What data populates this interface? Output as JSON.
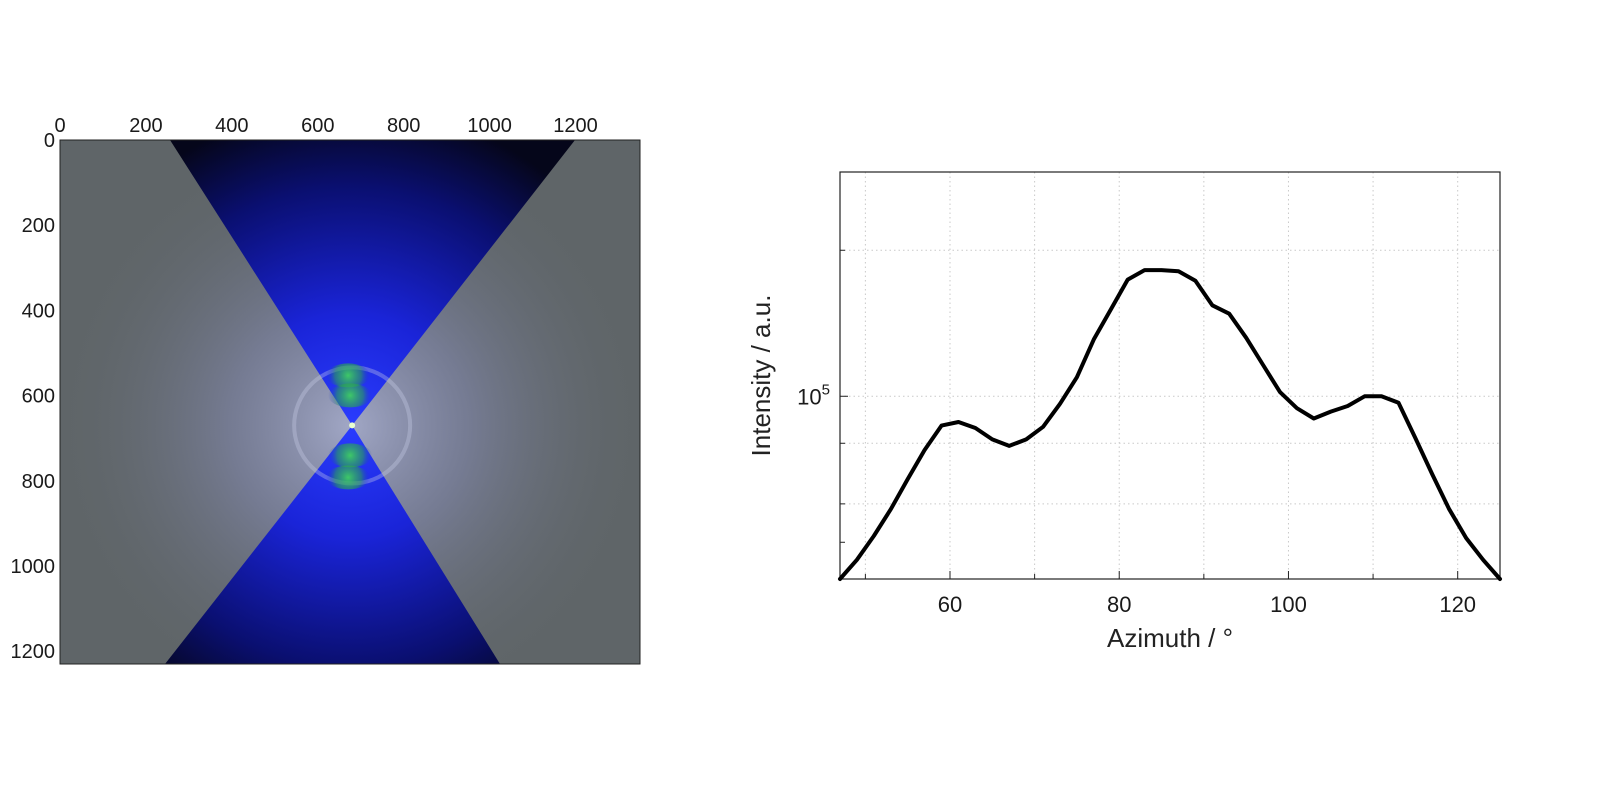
{
  "chart_data": [
    {
      "type": "heatmap",
      "x_ticks": [
        "0",
        "200",
        "400",
        "600",
        "800",
        "1000",
        "1200"
      ],
      "y_ticks": [
        "0",
        "200",
        "400",
        "600",
        "800",
        "1000",
        "1200"
      ],
      "xlim": [
        0,
        1350
      ],
      "ylim": [
        0,
        1230
      ],
      "beam_center": [
        680,
        670
      ],
      "colors": {
        "background": "#5f6568",
        "sector": "#1a24d8",
        "sector_dark": "#05061a",
        "ring": "#2aa84a",
        "overlay": "#c8cde8"
      }
    },
    {
      "type": "line",
      "title": "",
      "xlabel": "Azimuth / °",
      "ylabel": "Intensity / a.u.",
      "x_ticks": [
        "60",
        "80",
        "100",
        "120"
      ],
      "y_tick_label": {
        "base": "10",
        "exponent": "5"
      },
      "y_scale": "log",
      "xlim": [
        47,
        125
      ],
      "ylim": [
        42000,
        290000
      ],
      "grid": true,
      "series": [
        {
          "color": "#000000",
          "x": [
            47,
            49,
            51,
            53,
            55,
            57,
            59,
            61,
            63,
            65,
            67,
            69,
            71,
            73,
            75,
            77,
            79,
            81,
            83,
            85,
            87,
            89,
            91,
            93,
            95,
            97,
            99,
            101,
            103,
            105,
            107,
            109,
            111,
            113,
            115,
            117,
            119,
            121,
            123,
            125
          ],
          "y": [
            42000,
            46000,
            51500,
            58500,
            67500,
            77500,
            87000,
            88500,
            86000,
            81500,
            79000,
            81500,
            86500,
            96500,
            109500,
            131000,
            151000,
            174000,
            182000,
            182000,
            181000,
            173000,
            154000,
            148000,
            132000,
            116000,
            102000,
            94500,
            90000,
            93000,
            95500,
            100000,
            100000,
            97000,
            82000,
            69000,
            58500,
            51000,
            46000,
            42000
          ]
        }
      ]
    }
  ]
}
